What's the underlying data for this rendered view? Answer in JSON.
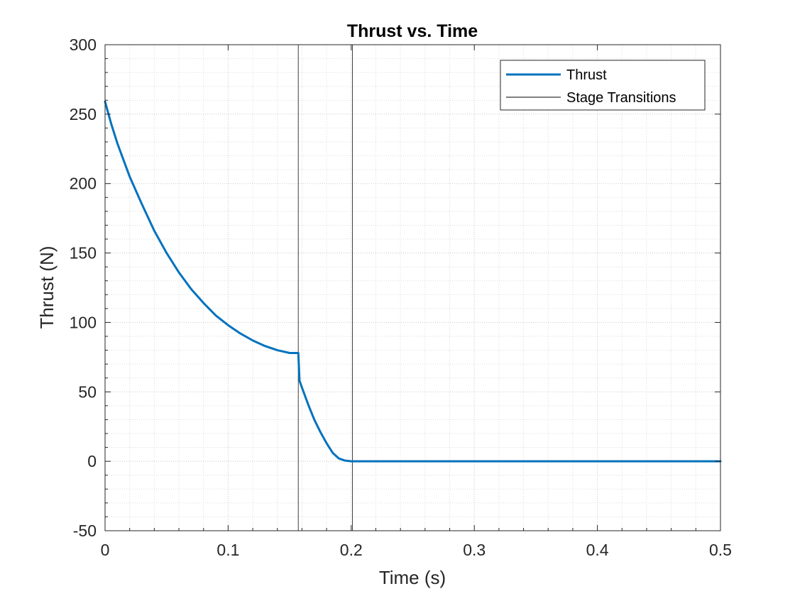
{
  "chart_data": {
    "type": "line",
    "title": "Thrust vs. Time",
    "xlabel": "Time (s)",
    "ylabel": "Thrust (N)",
    "xlim": [
      0,
      0.5
    ],
    "ylim": [
      -50,
      300
    ],
    "xticks": [
      0,
      0.1,
      0.2,
      0.3,
      0.4,
      0.5
    ],
    "xtick_labels": [
      "0",
      "0.1",
      "0.2",
      "0.3",
      "0.4",
      "0.5"
    ],
    "yticks": [
      -50,
      0,
      50,
      100,
      150,
      200,
      250,
      300
    ],
    "ytick_labels": [
      "-50",
      "0",
      "50",
      "100",
      "150",
      "200",
      "250",
      "300"
    ],
    "grid": true,
    "minor_grid": true,
    "legend_position": "top-right",
    "series": [
      {
        "name": "Thrust",
        "color": "#0072BD",
        "x": [
          0,
          0.005,
          0.01,
          0.02,
          0.03,
          0.04,
          0.05,
          0.06,
          0.07,
          0.08,
          0.09,
          0.1,
          0.11,
          0.12,
          0.13,
          0.14,
          0.15,
          0.157,
          0.158,
          0.16,
          0.165,
          0.17,
          0.175,
          0.18,
          0.185,
          0.19,
          0.195,
          0.2,
          0.25,
          0.3,
          0.35,
          0.4,
          0.45,
          0.5
        ],
        "y": [
          259,
          243,
          229,
          205,
          185,
          166,
          150,
          136,
          124,
          114,
          105,
          98,
          92,
          87,
          83,
          80,
          78,
          78,
          58,
          53,
          41,
          30,
          21,
          13,
          6,
          2,
          0.5,
          0,
          0,
          0,
          0,
          0,
          0,
          0
        ]
      }
    ],
    "stage_transitions": {
      "name": "Stage Transitions",
      "color": "#000000",
      "x": [
        0.157,
        0.201
      ]
    }
  }
}
